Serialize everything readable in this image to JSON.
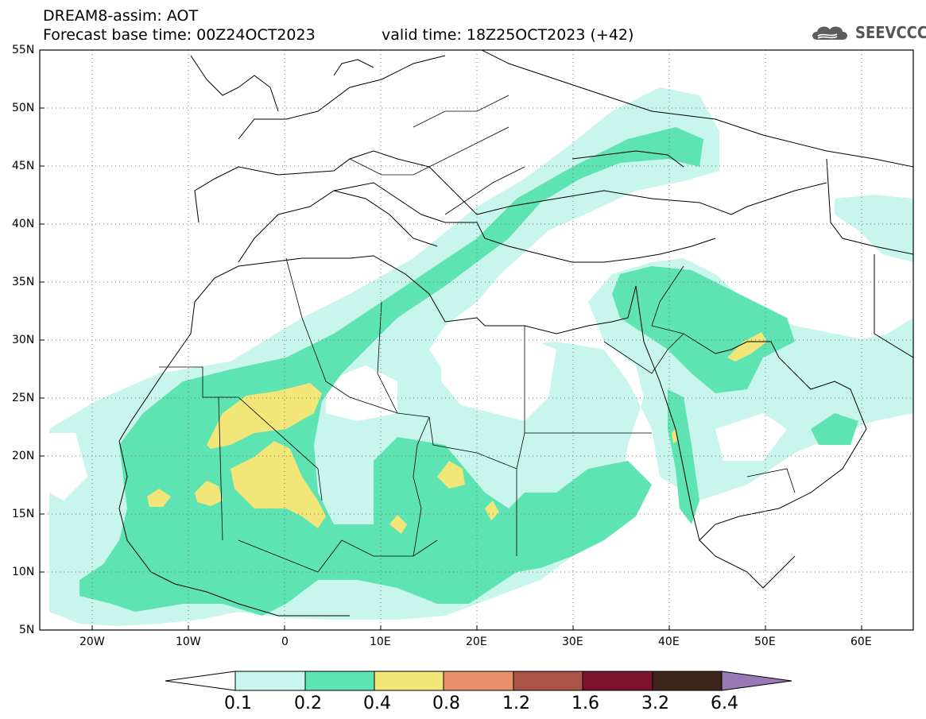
{
  "header": {
    "line1": "DREAM8-assim: AOT",
    "base_time": "Forecast base time: 00Z24OCT2023",
    "valid_time": "valid time: 18Z25OCT2023 (+42)"
  },
  "logo": {
    "text": "SEEVCCC",
    "icon": "cloud-icon"
  },
  "map": {
    "latitude_labels": [
      "55N",
      "50N",
      "45N",
      "40N",
      "35N",
      "30N",
      "25N",
      "20N",
      "15N",
      "10N",
      "5N"
    ],
    "longitude_labels": [
      "20W",
      "10W",
      "0",
      "10E",
      "20E",
      "30E",
      "40E",
      "50E",
      "60E"
    ],
    "grid": "dotted"
  },
  "colorbar": {
    "levels": [
      "0.1",
      "0.2",
      "0.4",
      "0.8",
      "1.2",
      "1.6",
      "3.2",
      "6.4"
    ],
    "colors": [
      "#c8f5ec",
      "#5ee3b3",
      "#f2e679",
      "#e8906a",
      "#ad5448",
      "#7a1230",
      "#3d2519",
      "#9a78b5"
    ],
    "under_color": "#ffffff"
  }
}
